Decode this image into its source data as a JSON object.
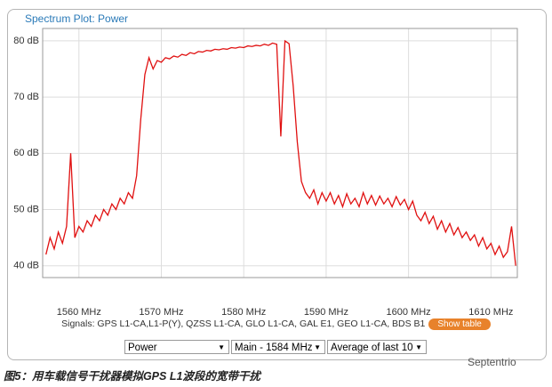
{
  "panel_title": "Spectrum Plot: Power",
  "chart_data": {
    "type": "line",
    "x": [
      1556,
      1556.5,
      1557,
      1557.5,
      1558,
      1558.5,
      1559,
      1559.5,
      1560,
      1560.5,
      1561,
      1561.5,
      1562,
      1562.5,
      1563,
      1563.5,
      1564,
      1564.5,
      1565,
      1565.5,
      1566,
      1566.5,
      1567,
      1567.5,
      1568,
      1568.5,
      1569,
      1569.5,
      1570,
      1570.5,
      1571,
      1571.5,
      1572,
      1572.5,
      1573,
      1573.5,
      1574,
      1574.5,
      1575,
      1575.5,
      1576,
      1576.5,
      1577,
      1577.5,
      1578,
      1578.5,
      1579,
      1579.5,
      1580,
      1580.5,
      1581,
      1581.5,
      1582,
      1582.5,
      1583,
      1583.5,
      1584,
      1584.5,
      1585,
      1585.5,
      1586,
      1586.5,
      1587,
      1587.5,
      1588,
      1588.5,
      1589,
      1589.5,
      1590,
      1590.5,
      1591,
      1591.5,
      1592,
      1592.5,
      1593,
      1593.5,
      1594,
      1594.5,
      1595,
      1595.5,
      1596,
      1596.5,
      1597,
      1597.5,
      1598,
      1598.5,
      1599,
      1599.5,
      1600,
      1600.5,
      1601,
      1601.5,
      1602,
      1602.5,
      1603,
      1603.5,
      1604,
      1604.5,
      1605,
      1605.5,
      1606,
      1606.5,
      1607,
      1607.5,
      1608,
      1608.5,
      1609,
      1609.5,
      1610,
      1610.5,
      1611,
      1611.5,
      1612,
      1612.5,
      1613
    ],
    "values": [
      42,
      45,
      43,
      46,
      44,
      47,
      60,
      45,
      47,
      46,
      48,
      47,
      49,
      48,
      50,
      49,
      51,
      50,
      52,
      51,
      53,
      52,
      56,
      66,
      74,
      77,
      75,
      76.5,
      76.2,
      77,
      76.8,
      77.3,
      77.1,
      77.6,
      77.4,
      77.9,
      77.7,
      78.1,
      78,
      78.3,
      78.2,
      78.5,
      78.4,
      78.6,
      78.5,
      78.8,
      78.7,
      78.9,
      78.8,
      79.1,
      79,
      79.2,
      79.1,
      79.4,
      79.2,
      79.6,
      79.4,
      63,
      80,
      79.5,
      72,
      62,
      55,
      53,
      52,
      53.5,
      51,
      53,
      51.5,
      53,
      51,
      52.5,
      50.5,
      52.8,
      51,
      52,
      50.5,
      53,
      51,
      52.5,
      50.8,
      52.4,
      51,
      52,
      50.5,
      52.3,
      50.8,
      51.8,
      50,
      51.5,
      49,
      48,
      49.5,
      47.5,
      48.8,
      46.5,
      48,
      46,
      47.5,
      45.5,
      46.8,
      45,
      46,
      44.5,
      45.5,
      43.5,
      45,
      43,
      44,
      42,
      43.5,
      41.5,
      42.5,
      47,
      40
    ],
    "color": "#e01010",
    "xlim": [
      1555.6,
      1613.2
    ],
    "ylim": [
      37.9,
      82.2
    ],
    "xticks": [
      {
        "value": 1560,
        "label": "1560 MHz"
      },
      {
        "value": 1570,
        "label": "1570 MHz"
      },
      {
        "value": 1580,
        "label": "1580 MHz"
      },
      {
        "value": 1590,
        "label": "1590 MHz"
      },
      {
        "value": 1600,
        "label": "1600 MHz"
      },
      {
        "value": 1610,
        "label": "1610 MHz"
      }
    ],
    "yticks": [
      {
        "value": 40,
        "label": "40 dB"
      },
      {
        "value": 50,
        "label": "50 dB"
      },
      {
        "value": 60,
        "label": "60 dB"
      },
      {
        "value": 70,
        "label": "70 dB"
      },
      {
        "value": 80,
        "label": "80 dB"
      }
    ],
    "grid": true
  },
  "signals": "Signals: GPS L1-CA,L1-P(Y), QZSS L1-CA, GLO L1-CA, GAL E1, GEO L1-CA, BDS B1",
  "show_table_button": "Show table",
  "dropdowns": [
    "Power",
    "Main - 1584 MHz",
    "Average of last 10"
  ],
  "caption": "图5：用车载信号干扰器模拟GPS L1波段的宽带干扰",
  "watermark": "Septentrio"
}
